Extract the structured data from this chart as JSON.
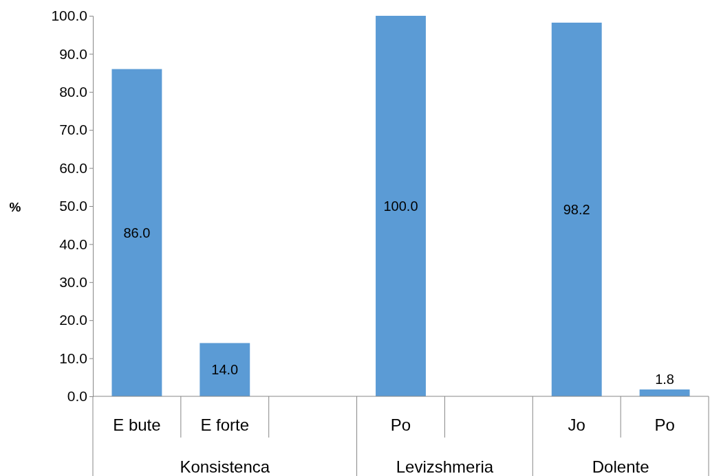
{
  "chart_data": {
    "type": "bar",
    "ylabel": "%",
    "categories": [
      "E bute",
      "E forte",
      null,
      "Po",
      null,
      "Jo",
      "Po"
    ],
    "values": [
      86.0,
      14.0,
      null,
      100.0,
      null,
      98.2,
      1.8
    ],
    "value_labels": [
      "86.0",
      "14.0",
      null,
      "100.0",
      null,
      "98.2",
      "1.8"
    ],
    "color": "#5b9bd5",
    "ylim": [
      0,
      100
    ],
    "yticks": [
      {
        "value": 0,
        "label": "0.0"
      },
      {
        "value": 10,
        "label": "10.0"
      },
      {
        "value": 20,
        "label": "20.0"
      },
      {
        "value": 30,
        "label": "30.0"
      },
      {
        "value": 40,
        "label": "40.0"
      },
      {
        "value": 50,
        "label": "50.0"
      },
      {
        "value": 60,
        "label": "60.0"
      },
      {
        "value": 70,
        "label": "70.0"
      },
      {
        "value": 80,
        "label": "80.0"
      },
      {
        "value": 90,
        "label": "90.0"
      },
      {
        "value": 100,
        "label": "100.0"
      }
    ],
    "annotations": [
      "Konsistenca",
      "Levizshmeria",
      "Dolente"
    ],
    "grid": false
  }
}
